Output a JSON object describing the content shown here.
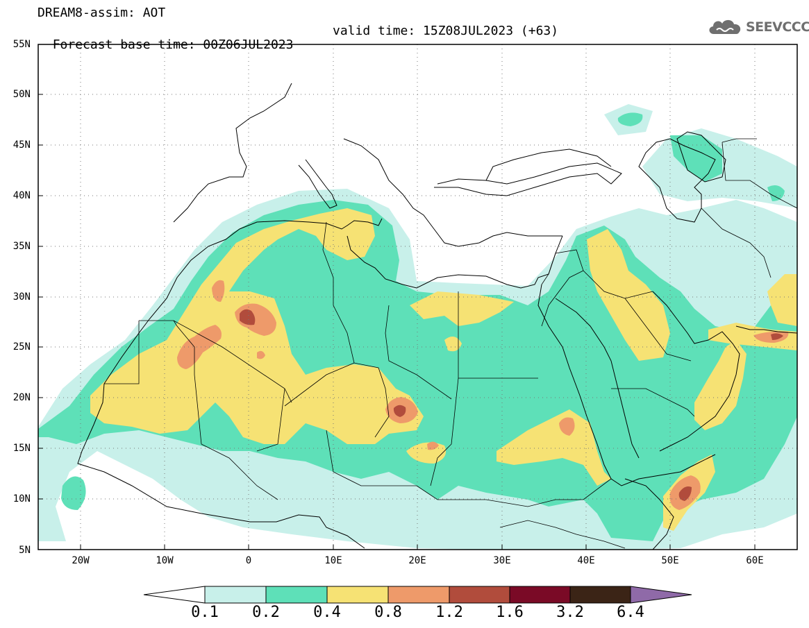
{
  "header": {
    "title": "DREAM8-assim: AOT",
    "base_time": "Forecast base time: 00Z06JUL2023",
    "valid_time": "valid time: 15Z08JUL2023 (+63)"
  },
  "logo": {
    "text": "SEEVCCC",
    "icon": "cloud-icon"
  },
  "map": {
    "variable": "AOT",
    "lon_range": [
      -25,
      65
    ],
    "lat_range": [
      5,
      55
    ],
    "lat_ticks": [
      "5N",
      "10N",
      "15N",
      "20N",
      "25N",
      "30N",
      "35N",
      "40N",
      "45N",
      "50N",
      "55N"
    ],
    "lon_ticks": [
      "20W",
      "10W",
      "0",
      "10E",
      "20E",
      "30E",
      "40E",
      "50E",
      "60E"
    ],
    "gridlines": "dotted"
  },
  "colorbar": {
    "labels": [
      "0.1",
      "0.2",
      "0.4",
      "0.8",
      "1.2",
      "1.6",
      "3.2",
      "6.4"
    ],
    "colors": {
      "0.1": "#c8f0ea",
      "0.2": "#5ee0b8",
      "0.4": "#f6e274",
      "0.8": "#ee9a6a",
      "1.2": "#b14c3c",
      "1.6": "#7a0a26",
      "3.2": "#3b2416",
      "6.4": "#8f6aa8"
    },
    "extend": "both"
  }
}
